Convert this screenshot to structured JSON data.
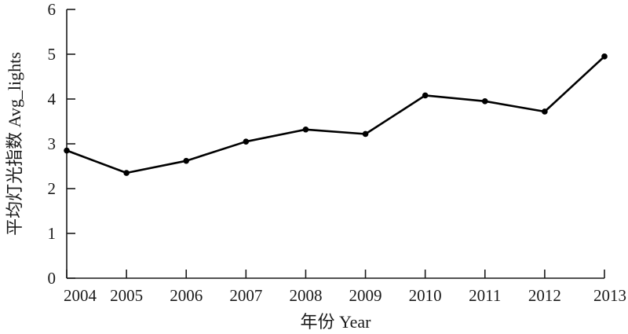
{
  "chart_data": {
    "type": "line",
    "title": "",
    "xlabel": "年份 Year",
    "ylabel": "平均灯光指数 Avg_lights",
    "x": [
      "2004",
      "2005",
      "2006",
      "2007",
      "2008",
      "2009",
      "2010",
      "2011",
      "2012",
      "2013"
    ],
    "series": [
      {
        "values": [
          2.85,
          2.35,
          2.62,
          3.05,
          3.32,
          3.22,
          4.08,
          3.95,
          3.72,
          4.95
        ]
      }
    ],
    "ylim": [
      0,
      6
    ],
    "yticks": [
      "0",
      "1",
      "2",
      "3",
      "4",
      "5",
      "6"
    ],
    "grid": false,
    "legend": "none",
    "colors": {
      "line": "#000000",
      "axis": "#1a1a1a"
    }
  }
}
